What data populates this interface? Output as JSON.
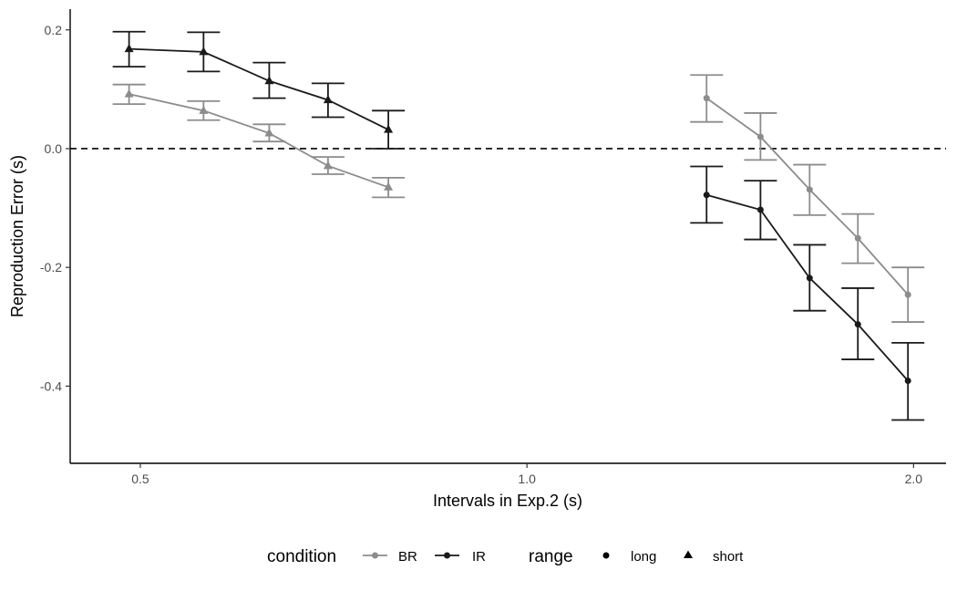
{
  "chart_data": {
    "type": "line",
    "xlabel": "Intervals in Exp.2 (s)",
    "ylabel": "Reproduction Error (s)",
    "xscale": "log",
    "xlim": [
      0.4409,
      2.12
    ],
    "ylim": [
      -0.53,
      0.235
    ],
    "x_ticks": [
      0.5,
      1.0,
      2.0
    ],
    "x_tick_labels": [
      "0.5",
      "1.0",
      "2.0"
    ],
    "y_ticks": [
      0.2,
      0.0,
      -0.2,
      -0.4
    ],
    "y_tick_labels": [
      "0.2",
      "0.0",
      "-0.2",
      "-0.4"
    ],
    "reference_line": {
      "y": 0.0,
      "style": "dashed"
    },
    "grid": false,
    "legend": {
      "position": "bottom",
      "condition_title": "condition",
      "range_title": "range",
      "conditions": [
        {
          "label": "BR",
          "color": "#8c8c8c"
        },
        {
          "label": "IR",
          "color": "#1a1a1a"
        }
      ],
      "ranges": [
        {
          "label": "long",
          "shape": "circle"
        },
        {
          "label": "short",
          "shape": "triangle"
        }
      ]
    },
    "series": [
      {
        "condition": "IR",
        "range": "short",
        "color": "#1a1a1a",
        "shape": "triangle",
        "points": [
          {
            "x": 0.49,
            "y": 0.168,
            "lo": 0.138,
            "hi": 0.197
          },
          {
            "x": 0.56,
            "y": 0.163,
            "lo": 0.13,
            "hi": 0.196
          },
          {
            "x": 0.63,
            "y": 0.114,
            "lo": 0.085,
            "hi": 0.145
          },
          {
            "x": 0.7,
            "y": 0.082,
            "lo": 0.053,
            "hi": 0.11
          },
          {
            "x": 0.78,
            "y": 0.032,
            "lo": 0.0,
            "hi": 0.064
          }
        ]
      },
      {
        "condition": "BR",
        "range": "short",
        "color": "#8c8c8c",
        "shape": "triangle",
        "points": [
          {
            "x": 0.49,
            "y": 0.092,
            "lo": 0.075,
            "hi": 0.108
          },
          {
            "x": 0.56,
            "y": 0.064,
            "lo": 0.048,
            "hi": 0.08
          },
          {
            "x": 0.63,
            "y": 0.026,
            "lo": 0.012,
            "hi": 0.041
          },
          {
            "x": 0.7,
            "y": -0.029,
            "lo": -0.043,
            "hi": -0.014
          },
          {
            "x": 0.78,
            "y": -0.065,
            "lo": -0.082,
            "hi": -0.049
          }
        ]
      },
      {
        "condition": "BR",
        "range": "long",
        "color": "#8c8c8c",
        "shape": "circle",
        "points": [
          {
            "x": 1.38,
            "y": 0.085,
            "lo": 0.045,
            "hi": 0.124
          },
          {
            "x": 1.52,
            "y": 0.02,
            "lo": -0.019,
            "hi": 0.06
          },
          {
            "x": 1.66,
            "y": -0.069,
            "lo": -0.112,
            "hi": -0.027
          },
          {
            "x": 1.81,
            "y": -0.151,
            "lo": -0.193,
            "hi": -0.11
          },
          {
            "x": 1.98,
            "y": -0.246,
            "lo": -0.292,
            "hi": -0.2
          }
        ]
      },
      {
        "condition": "IR",
        "range": "long",
        "color": "#1a1a1a",
        "shape": "circle",
        "points": [
          {
            "x": 1.38,
            "y": -0.078,
            "lo": -0.125,
            "hi": -0.03
          },
          {
            "x": 1.52,
            "y": -0.103,
            "lo": -0.153,
            "hi": -0.054
          },
          {
            "x": 1.66,
            "y": -0.218,
            "lo": -0.273,
            "hi": -0.162
          },
          {
            "x": 1.81,
            "y": -0.296,
            "lo": -0.355,
            "hi": -0.235
          },
          {
            "x": 1.98,
            "y": -0.391,
            "lo": -0.457,
            "hi": -0.327
          }
        ]
      }
    ]
  }
}
